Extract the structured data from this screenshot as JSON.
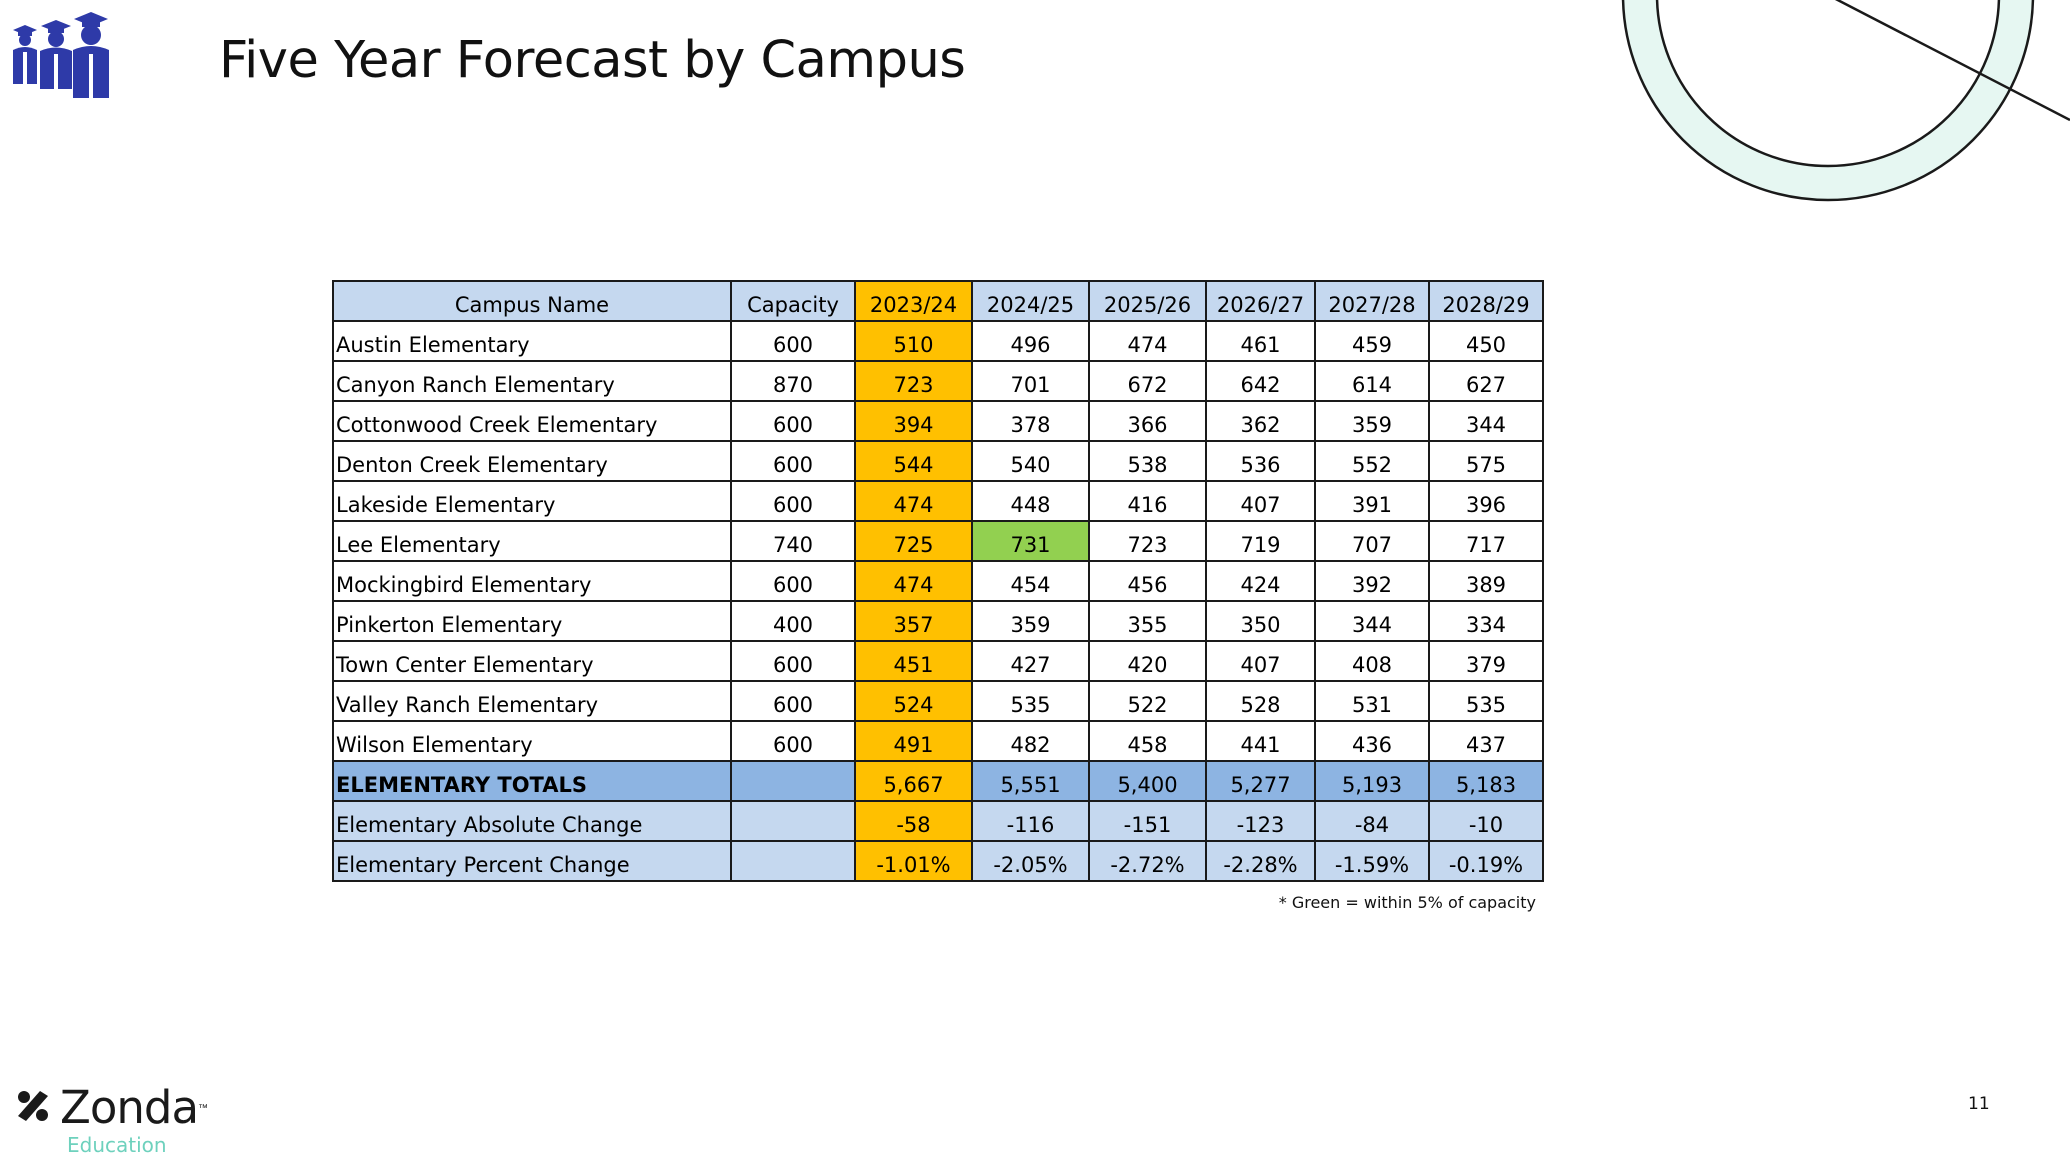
{
  "slide": {
    "title": "Five Year Forecast by Campus",
    "page_number": "11",
    "footnote": "* Green = within 5% of capacity"
  },
  "logo": {
    "name": "Zonda",
    "trademark": "™",
    "subtitle": "Education"
  },
  "icons": {
    "top_left": "graduates-icon",
    "decoration": "circle-ring-decoration"
  },
  "colors": {
    "header_fill": "#c5d8ef",
    "current_year_fill": "#ffc000",
    "within_capacity_fill": "#92d050",
    "totals_fill": "#8db4e2",
    "icon_blue": "#2e3aa8",
    "ring_mint": "#e6f7f2",
    "logo_accent": "#6ed1bd"
  },
  "table": {
    "columns": [
      "Campus Name",
      "Capacity",
      "2023/24",
      "2024/25",
      "2025/26",
      "2026/27",
      "2027/28",
      "2028/29"
    ],
    "rows": [
      [
        "Austin Elementary",
        "600",
        "510",
        "496",
        "474",
        "461",
        "459",
        "450"
      ],
      [
        "Canyon Ranch Elementary",
        "870",
        "723",
        "701",
        "672",
        "642",
        "614",
        "627"
      ],
      [
        "Cottonwood Creek Elementary",
        "600",
        "394",
        "378",
        "366",
        "362",
        "359",
        "344"
      ],
      [
        "Denton Creek Elementary",
        "600",
        "544",
        "540",
        "538",
        "536",
        "552",
        "575"
      ],
      [
        "Lakeside Elementary",
        "600",
        "474",
        "448",
        "416",
        "407",
        "391",
        "396"
      ],
      [
        "Lee Elementary",
        "740",
        "725",
        "731",
        "723",
        "719",
        "707",
        "717"
      ],
      [
        "Mockingbird Elementary",
        "600",
        "474",
        "454",
        "456",
        "424",
        "392",
        "389"
      ],
      [
        "Pinkerton Elementary",
        "400",
        "357",
        "359",
        "355",
        "350",
        "344",
        "334"
      ],
      [
        "Town Center Elementary",
        "600",
        "451",
        "427",
        "420",
        "407",
        "408",
        "379"
      ],
      [
        "Valley Ranch Elementary",
        "600",
        "524",
        "535",
        "522",
        "528",
        "531",
        "535"
      ],
      [
        "Wilson Elementary",
        "600",
        "491",
        "482",
        "458",
        "441",
        "436",
        "437"
      ]
    ],
    "green_cells": [
      [
        5,
        3
      ]
    ],
    "totals": [
      "ELEMENTARY TOTALS",
      "",
      "5,667",
      "5,551",
      "5,400",
      "5,277",
      "5,193",
      "5,183"
    ],
    "absolute_change": [
      "Elementary Absolute Change",
      "",
      "-58",
      "-116",
      "-151",
      "-123",
      "-84",
      "-10"
    ],
    "percent_change": [
      "Elementary Percent Change",
      "",
      "-1.01%",
      "-2.05%",
      "-2.72%",
      "-2.28%",
      "-1.59%",
      "-0.19%"
    ]
  }
}
